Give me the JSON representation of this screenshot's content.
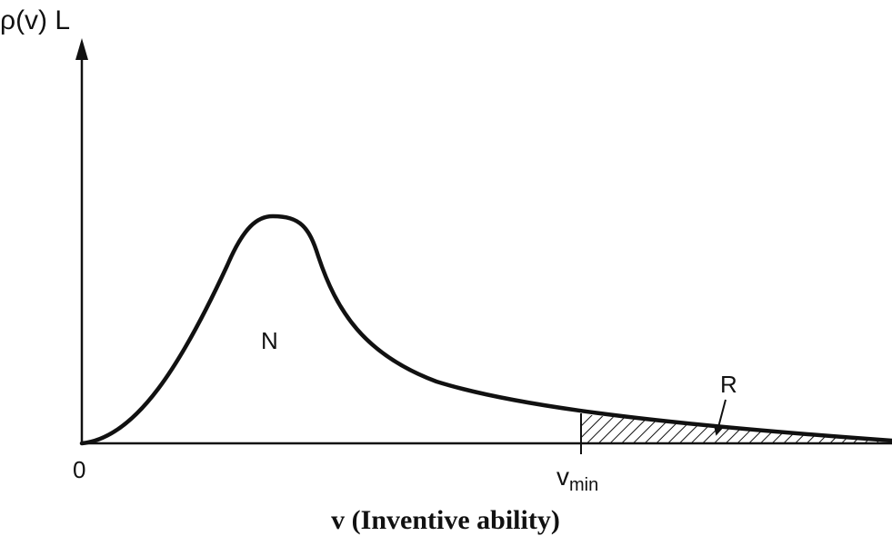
{
  "axes": {
    "y_label": "ρ(v) L",
    "origin": "0",
    "x_marker": {
      "base": "v",
      "subscript": "min"
    }
  },
  "regions": {
    "main": "N",
    "tail": "R"
  },
  "caption": "v (Inventive ability)"
}
